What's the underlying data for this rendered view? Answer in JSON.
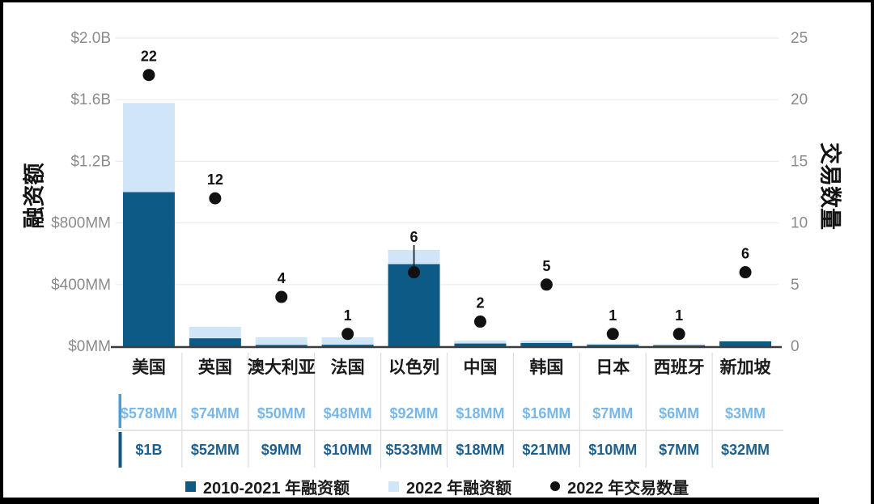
{
  "colors": {
    "bar_dark": "#0e5a87",
    "bar_light": "#d0e5f7",
    "dot": "#111111",
    "grid": "#ebebeb",
    "axis_line": "#3d3d3d",
    "tick_label": "#8b8b8b",
    "separator": "#dcdcdc",
    "table_row_2022_text": "#79b7e8",
    "table_row_2022_accent": "#4a9ddd",
    "table_row_2010_text": "#1d608f",
    "table_row_2010_accent": "#14567f"
  },
  "left_axis": {
    "title": "融资额",
    "tick_labels": [
      "$0MM",
      "$400MM",
      "$800MM",
      "$1.2B",
      "$1.6B",
      "$2.0B"
    ],
    "tick_values": [
      0,
      400,
      800,
      1200,
      1600,
      2000
    ]
  },
  "right_axis": {
    "title": "交易数量",
    "tick_labels": [
      "0",
      "5",
      "10",
      "15",
      "20",
      "25"
    ],
    "tick_values": [
      0,
      5,
      10,
      15,
      20,
      25
    ]
  },
  "chart_data": {
    "type": "bar",
    "subtype": "stacked bars (left axis, USD) + scatter dots (right axis, deal count), dual axis",
    "categories": [
      "美国",
      "英国",
      "澳大利亚",
      "法国",
      "以色列",
      "中国",
      "韩国",
      "日本",
      "西班牙",
      "新加坡"
    ],
    "series": [
      {
        "name": "2010-2021 年融资额",
        "axis": "left",
        "unit": "USD millions",
        "values": [
          1000,
          52,
          9,
          10,
          533,
          18,
          21,
          10,
          7,
          32
        ],
        "labels": [
          "$1B",
          "$52MM",
          "$9MM",
          "$10MM",
          "$533MM",
          "$18MM",
          "$21MM",
          "$10MM",
          "$7MM",
          "$32MM"
        ],
        "color": "#0e5a87"
      },
      {
        "name": "2022 年融资额",
        "axis": "left",
        "unit": "USD millions",
        "values": [
          578,
          74,
          50,
          48,
          92,
          18,
          16,
          7,
          6,
          3
        ],
        "labels": [
          "$578MM",
          "$74MM",
          "$50MM",
          "$48MM",
          "$92MM",
          "$18MM",
          "$16MM",
          "$7MM",
          "$6MM",
          "$3MM"
        ],
        "color": "#d0e5f7"
      },
      {
        "name": "2022 年交易数量",
        "axis": "right",
        "unit": "deals",
        "values": [
          22,
          12,
          4,
          1,
          6,
          2,
          5,
          1,
          1,
          6
        ],
        "color": "#111111"
      }
    ],
    "left_ylim": [
      0,
      2000
    ],
    "right_ylim": [
      0,
      25
    ],
    "grid": true,
    "legend_position": "bottom",
    "stack_order": "2010-2021 on bottom, 2022 on top"
  },
  "legend": [
    {
      "label": "2010-2021 年融资额",
      "marker": "square",
      "color": "#0e5a87"
    },
    {
      "label": "2022 年融资额",
      "marker": "square",
      "color": "#d0e5f7"
    },
    {
      "label": "2022 年交易数量",
      "marker": "dot",
      "color": "#111111"
    }
  ]
}
